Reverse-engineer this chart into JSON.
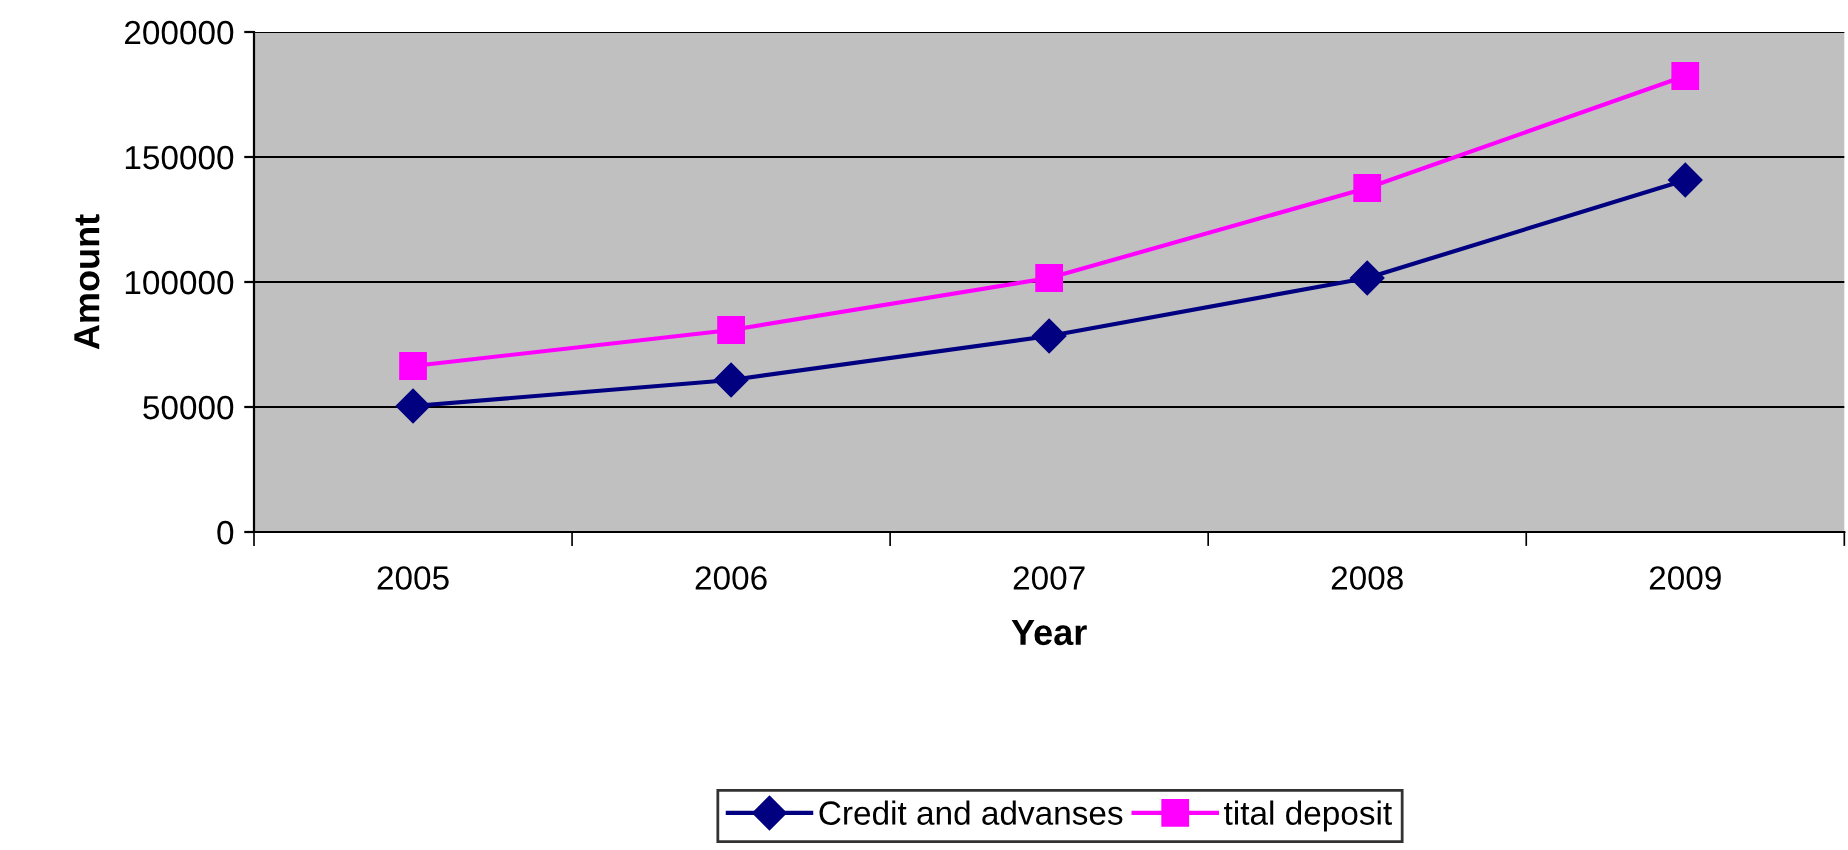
{
  "chart_data": {
    "type": "line",
    "xlabel": "Year",
    "ylabel": "Amount",
    "categories": [
      "2005",
      "2006",
      "2007",
      "2008",
      "2009"
    ],
    "series": [
      {
        "name": "Credit and advanses",
        "color": "#000080",
        "marker": "diamond",
        "values": [
          50400,
          60800,
          78400,
          101600,
          140800
        ]
      },
      {
        "name": "tital deposit",
        "color": "#ff00ff",
        "marker": "square",
        "values": [
          66400,
          80800,
          101600,
          137600,
          182400
        ]
      }
    ],
    "ylim": [
      0,
      200000
    ],
    "yticks": [
      0,
      50000,
      100000,
      150000,
      200000
    ],
    "grid": "y",
    "legend": "bottom"
  }
}
